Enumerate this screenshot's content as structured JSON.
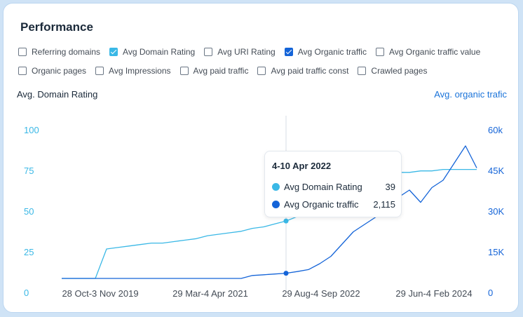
{
  "title": "Performance",
  "checkboxes_row1": [
    {
      "label": "Referring domains",
      "checked": false,
      "color": ""
    },
    {
      "label": "Avg Domain Rating",
      "checked": true,
      "color": "#3ab8e6"
    },
    {
      "label": "Avg URI Rating",
      "checked": false,
      "color": ""
    },
    {
      "label": "Avg Organic traffic",
      "checked": true,
      "color": "#1464d8"
    },
    {
      "label": "Avg Organic traffic value",
      "checked": false,
      "color": ""
    }
  ],
  "checkboxes_row2": [
    {
      "label": "Organic pages",
      "checked": false,
      "color": ""
    },
    {
      "label": "Avg Impressions",
      "checked": false,
      "color": ""
    },
    {
      "label": "Avg paid traffic",
      "checked": false,
      "color": ""
    },
    {
      "label": "Avg paid traffic const",
      "checked": false,
      "color": ""
    },
    {
      "label": "Crawled pages",
      "checked": false,
      "color": ""
    }
  ],
  "tooltip": {
    "title": "4-10 Apr 2022",
    "rows": [
      {
        "label": "Avg Domain Rating",
        "value": "39",
        "color": "#3ab8e6"
      },
      {
        "label": "Avg Organic traffic",
        "value": "2,115",
        "color": "#1464d8"
      }
    ]
  },
  "chart_data": {
    "type": "line",
    "xlabel": "",
    "ylabel": "Avg. Domain Rating",
    "ylabel_right": "Avg. organic trafic",
    "x_tick_labels": [
      "28 Oct-3 Nov 2019",
      "29 Mar-4 Apr 2021",
      "29 Aug-4 Sep 2022",
      "29 Jun-4 Feb 2024"
    ],
    "y_left_ticks": [
      "0",
      "25",
      "50",
      "75",
      "100"
    ],
    "y_right_ticks": [
      "0",
      "15K",
      "30K",
      "45K",
      "60k"
    ],
    "ylim_left": [
      0,
      100
    ],
    "ylim_right": [
      0,
      60000
    ],
    "grid": false,
    "colors": {
      "domain_rating": "#3ab8e6",
      "organic": "#1464d8"
    },
    "hover_index": 20,
    "x": [
      "2019-03",
      "2019-06",
      "2019-09",
      "2019-10",
      "2019-11",
      "2020-01",
      "2020-03",
      "2020-05",
      "2020-07",
      "2020-09",
      "2020-10",
      "2020-12",
      "2021-01",
      "2021-03",
      "2021-04",
      "2021-06",
      "2021-08",
      "2021-10",
      "2021-12",
      "2022-02",
      "2022-04",
      "2022-06",
      "2022-08",
      "2022-10",
      "2022-12",
      "2023-02",
      "2023-04",
      "2023-06",
      "2023-08",
      "2023-10",
      "2023-11",
      "2023-12",
      "2024-01",
      "2024-02",
      "2024-03",
      "2024-04",
      "2024-05",
      "2024-06"
    ],
    "series": [
      {
        "name": "Avg Domain Rating",
        "axis": "left",
        "values": [
          0,
          0,
          0,
          0,
          20,
          21,
          22,
          23,
          24,
          24,
          25,
          26,
          27,
          29,
          30,
          31,
          32,
          34,
          35,
          37,
          39,
          42,
          48,
          54,
          60,
          64,
          67,
          69,
          70,
          71,
          72,
          72,
          73,
          73,
          74,
          74,
          74,
          74
        ]
      },
      {
        "name": "Avg Organic traffic",
        "axis": "right",
        "values": [
          0,
          0,
          0,
          0,
          0,
          0,
          0,
          0,
          0,
          0,
          0,
          0,
          0,
          0,
          0,
          0,
          0,
          1200,
          1500,
          1800,
          2115,
          2800,
          3600,
          6000,
          9000,
          14000,
          19000,
          22000,
          25000,
          30000,
          33000,
          36000,
          31000,
          37000,
          40000,
          47000,
          54000,
          45000
        ]
      }
    ]
  }
}
